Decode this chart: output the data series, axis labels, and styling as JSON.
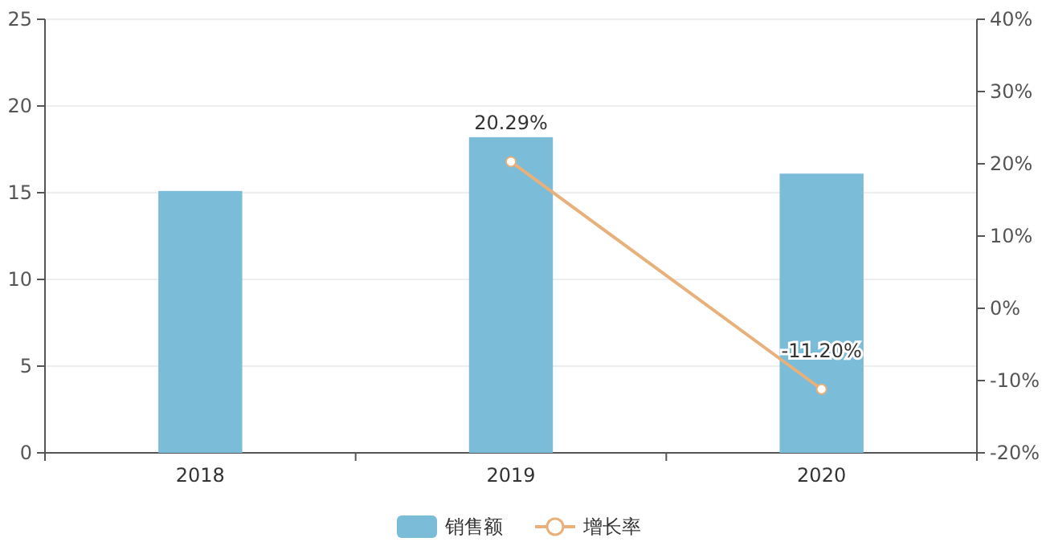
{
  "chart_data": {
    "type": "bar",
    "categories": [
      "2018",
      "2019",
      "2020"
    ],
    "series": [
      {
        "name": "销售额",
        "color": "#7bbcd9",
        "values": [
          15.1,
          18.2,
          16.1
        ]
      },
      {
        "name": "增长率",
        "type": "line",
        "axis": "y2",
        "color": "#e8b07a",
        "marker": "circle",
        "values": [
          null,
          20.29,
          -11.2
        ],
        "value_labels": [
          null,
          "20.29%",
          "-11.20%"
        ]
      }
    ],
    "ylim": [
      0,
      25
    ],
    "yticks": [
      0,
      5,
      10,
      15,
      20,
      25
    ],
    "y2lim": [
      -20,
      40
    ],
    "y2ticks": [
      {
        "value": -20,
        "label": "-20%"
      },
      {
        "value": -10,
        "label": "-10%"
      },
      {
        "value": 0,
        "label": "0%"
      },
      {
        "value": 10,
        "label": "10%"
      },
      {
        "value": 20,
        "label": "20%"
      },
      {
        "value": 30,
        "label": "30%"
      },
      {
        "value": 40,
        "label": "40%"
      }
    ],
    "grid": "y",
    "legend": "bottom"
  }
}
